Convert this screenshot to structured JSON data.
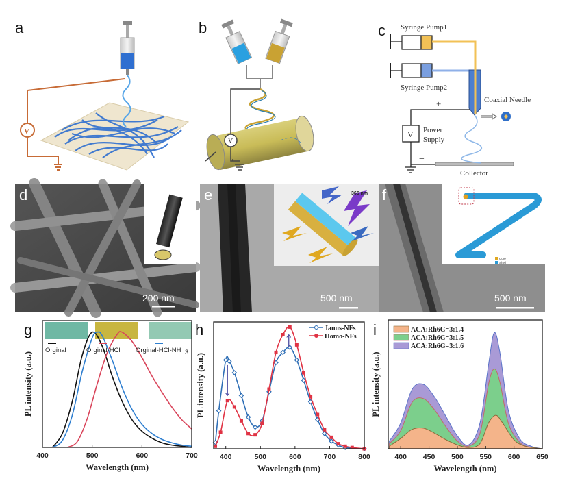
{
  "panels": {
    "a": {
      "label": "a",
      "voltage_symbol": "V"
    },
    "b": {
      "label": "b",
      "voltage_symbol": "V"
    },
    "c": {
      "label": "c",
      "syringe_pump1": "Syringe Pump1",
      "syringe_pump2": "Syringe Pump2",
      "coaxial_needle": "Coaxial Needle",
      "plus": "+",
      "minus": "−",
      "voltage_symbol": "V",
      "power": "Power",
      "supply": "Supply",
      "collector": "Collector"
    },
    "d": {
      "label": "d",
      "scale_bar": "200 nm"
    },
    "e": {
      "label": "e",
      "scale_bar": "500 nm",
      "excitation": "365 nm"
    },
    "f": {
      "label": "f",
      "scale_bar": "500 nm",
      "legend_core": "Core",
      "legend_shell": "Shell"
    },
    "g": {
      "label": "g",
      "swatch_colors": [
        "#6fb8a4",
        "#c8b640",
        "#93c9b3"
      ]
    },
    "h": {
      "label": "h"
    },
    "i": {
      "label": "i"
    }
  },
  "chart_data": [
    {
      "panel": "g",
      "type": "line",
      "xlabel": "Wavelength (nm)",
      "ylabel": "PL intensity (a.u.)",
      "xlim": [
        400,
        700
      ],
      "ylim": [
        0,
        1.1
      ],
      "xticks": [
        "400",
        "500",
        "600",
        "700"
      ],
      "grid": false,
      "legend_position": "top",
      "series": [
        {
          "name": "Orginal",
          "name_sub": "",
          "color": "#111111",
          "x": [
            420,
            440,
            460,
            480,
            500,
            520,
            540,
            560,
            580,
            600,
            620,
            640,
            660,
            680,
            700
          ],
          "y": [
            0,
            0.12,
            0.4,
            0.8,
            1.0,
            0.88,
            0.62,
            0.4,
            0.24,
            0.14,
            0.08,
            0.04,
            0.02,
            0.01,
            0
          ]
        },
        {
          "name": "Orginal-HCl",
          "name_sub": "",
          "color": "#d9445a",
          "x": [
            450,
            470,
            490,
            510,
            530,
            550,
            560,
            580,
            600,
            620,
            640,
            660,
            680,
            700
          ],
          "y": [
            0,
            0.05,
            0.25,
            0.55,
            0.82,
            0.98,
            1.0,
            0.92,
            0.78,
            0.62,
            0.48,
            0.35,
            0.24,
            0.16
          ]
        },
        {
          "name": "Orginal-HCl-NH",
          "name_sub": "3",
          "color": "#2f7fd0",
          "x": [
            420,
            440,
            460,
            480,
            500,
            510,
            520,
            540,
            560,
            580,
            600,
            620,
            640,
            660,
            680,
            700
          ],
          "y": [
            0,
            0.06,
            0.28,
            0.66,
            0.95,
            1.0,
            0.97,
            0.76,
            0.52,
            0.33,
            0.2,
            0.12,
            0.07,
            0.04,
            0.02,
            0.01
          ]
        }
      ]
    },
    {
      "panel": "h",
      "type": "line",
      "xlabel": "Wavelength (nm)",
      "ylabel": "PL intensity (a.u.)",
      "xlim": [
        365,
        800
      ],
      "ylim": [
        0,
        1
      ],
      "xticks": [
        "400",
        "500",
        "600",
        "700",
        "800"
      ],
      "grid": false,
      "legend_position": "top-right",
      "series": [
        {
          "name": "Janus-NFs",
          "color": "#2f6fb6",
          "marker": "diamond",
          "x": [
            370,
            380,
            400,
            410,
            425,
            445,
            465,
            485,
            505,
            525,
            545,
            565,
            585,
            605,
            625,
            645,
            665,
            685,
            705,
            725,
            745,
            800
          ],
          "y": [
            0.05,
            0.3,
            0.7,
            0.69,
            0.6,
            0.42,
            0.25,
            0.17,
            0.22,
            0.45,
            0.68,
            0.76,
            0.8,
            0.7,
            0.54,
            0.37,
            0.23,
            0.12,
            0.06,
            0.03,
            0.01,
            0
          ]
        },
        {
          "name": "Homo-NFs",
          "color": "#e03344",
          "marker": "square",
          "x": [
            370,
            385,
            405,
            425,
            445,
            465,
            485,
            505,
            525,
            545,
            565,
            585,
            605,
            625,
            645,
            665,
            685,
            705,
            725,
            745,
            765,
            800
          ],
          "y": [
            0.02,
            0.13,
            0.38,
            0.33,
            0.22,
            0.12,
            0.11,
            0.2,
            0.47,
            0.76,
            0.9,
            0.96,
            0.82,
            0.6,
            0.41,
            0.27,
            0.15,
            0.09,
            0.04,
            0.02,
            0.01,
            0
          ]
        }
      ],
      "annotations": [
        "arrow down at 400 nm (Janus→Homo)",
        "arrow up at 585 nm (Janus→Homo)"
      ]
    },
    {
      "panel": "i",
      "type": "area",
      "xlabel": "Wavelength (nm)",
      "ylabel": "PL intensity (a.u.)",
      "xlim": [
        378,
        650
      ],
      "ylim": [
        0,
        1
      ],
      "xticks": [
        "400",
        "450",
        "500",
        "550",
        "600",
        "650"
      ],
      "grid": false,
      "legend_position": "top-left",
      "series": [
        {
          "name": "ACA:Rh6G=3:1.6",
          "color": "#a99ad6",
          "edge": "#5a73c8",
          "x": [
            380,
            400,
            420,
            440,
            460,
            480,
            500,
            520,
            540,
            555,
            565,
            575,
            590,
            610,
            630,
            650
          ],
          "y": [
            0.06,
            0.2,
            0.46,
            0.5,
            0.4,
            0.25,
            0.1,
            0.03,
            0.2,
            0.65,
            0.9,
            0.75,
            0.3,
            0.08,
            0.02,
            0
          ]
        },
        {
          "name": "ACA:Rh6G=3:1.5",
          "color": "#7ccf8c",
          "edge": "#c06a6a",
          "x": [
            380,
            400,
            420,
            440,
            460,
            480,
            500,
            520,
            540,
            555,
            565,
            575,
            590,
            610,
            630,
            650
          ],
          "y": [
            0.04,
            0.14,
            0.36,
            0.39,
            0.3,
            0.17,
            0.06,
            0.02,
            0.12,
            0.5,
            0.62,
            0.52,
            0.2,
            0.05,
            0.01,
            0
          ]
        },
        {
          "name": "ACA:Rh6G=3:1.4",
          "color": "#f4b48a",
          "edge": "#8a6a3a",
          "x": [
            380,
            400,
            420,
            440,
            460,
            480,
            500,
            520,
            540,
            555,
            568,
            580,
            600,
            620,
            650
          ],
          "y": [
            0.02,
            0.08,
            0.15,
            0.16,
            0.12,
            0.07,
            0.03,
            0.01,
            0.04,
            0.2,
            0.26,
            0.2,
            0.07,
            0.02,
            0
          ]
        }
      ]
    }
  ]
}
